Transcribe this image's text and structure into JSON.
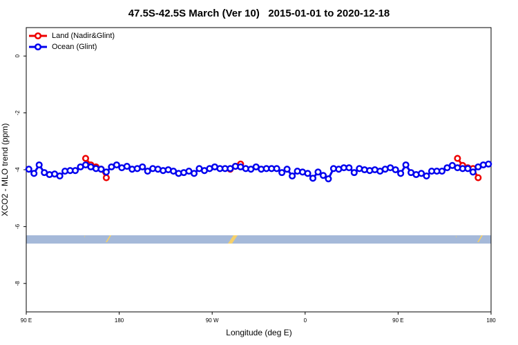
{
  "chart_data": {
    "type": "line",
    "title": "47.5S-42.5S March (Ver 10)   2015-01-01 to 2020-12-18",
    "x_label": "Longitude (deg E)",
    "y_label": "XCO2 - MLO trend (ppm)",
    "x": [
      92.5,
      97.5,
      102.5,
      107.5,
      112.5,
      117.5,
      122.5,
      127.5,
      132.5,
      137.5,
      142.5,
      147.5,
      152.5,
      157.5,
      162.5,
      167.5,
      172.5,
      177.5,
      182.5,
      187.5,
      192.5,
      197.5,
      202.5,
      207.5,
      212.5,
      217.5,
      222.5,
      227.5,
      232.5,
      237.5,
      242.5,
      247.5,
      252.5,
      257.5,
      262.5,
      267.5,
      272.5,
      277.5,
      282.5,
      287.5,
      292.5,
      297.5,
      302.5,
      307.5,
      312.5,
      317.5,
      322.5,
      327.5,
      332.5,
      337.5,
      342.5,
      347.5,
      352.5,
      357.5,
      362.5,
      367.5,
      372.5,
      377.5,
      382.5,
      387.5,
      392.5,
      397.5,
      402.5,
      407.5,
      412.5,
      417.5,
      422.5,
      427.5,
      432.5,
      437.5,
      442.5,
      447.5,
      452.5,
      457.5,
      462.5,
      467.5,
      472.5,
      477.5,
      482.5,
      487.5,
      492.5,
      497.5,
      502.5,
      507.5,
      512.5,
      517.5,
      522.5,
      527.5,
      532.5,
      537.5
    ],
    "series": [
      {
        "name": "Land (Nadir&Glint)",
        "color": "#ee0000",
        "values": [
          null,
          null,
          null,
          null,
          null,
          null,
          null,
          null,
          null,
          null,
          null,
          -3.6,
          -3.83,
          -3.9,
          -3.98,
          -4.28,
          null,
          null,
          null,
          null,
          null,
          null,
          null,
          null,
          null,
          null,
          null,
          null,
          null,
          null,
          null,
          null,
          null,
          null,
          null,
          null,
          null,
          null,
          null,
          -3.98,
          -3.88,
          -3.8,
          null,
          null,
          null,
          null,
          null,
          null,
          null,
          null,
          null,
          null,
          null,
          null,
          null,
          null,
          null,
          null,
          null,
          null,
          null,
          null,
          null,
          null,
          null,
          null,
          null,
          null,
          null,
          null,
          null,
          null,
          null,
          null,
          null,
          null,
          null,
          null,
          null,
          null,
          null,
          null,
          null,
          -3.6,
          -3.85,
          -3.93,
          -3.96,
          -4.28,
          null,
          null
        ]
      },
      {
        "name": "Ocean (Glint)",
        "color": "#0000ee",
        "values": [
          -3.98,
          -4.13,
          -3.83,
          -4.1,
          -4.17,
          -4.15,
          -4.22,
          -4.05,
          -4.03,
          -4.03,
          -3.9,
          -3.83,
          -3.9,
          -3.96,
          -3.98,
          -4.08,
          -3.9,
          -3.83,
          -3.93,
          -3.88,
          -3.98,
          -3.96,
          -3.9,
          -4.05,
          -3.96,
          -3.98,
          -4.03,
          -4.0,
          -4.05,
          -4.13,
          -4.1,
          -4.05,
          -4.13,
          -3.96,
          -4.03,
          -3.96,
          -3.9,
          -3.96,
          -3.96,
          -3.96,
          -3.88,
          -3.9,
          -3.96,
          -3.98,
          -3.9,
          -3.98,
          -3.96,
          -3.96,
          -3.96,
          -4.1,
          -3.98,
          -4.22,
          -4.05,
          -4.08,
          -4.13,
          -4.3,
          -4.08,
          -4.2,
          -4.32,
          -3.96,
          -3.98,
          -3.93,
          -3.93,
          -4.1,
          -3.96,
          -4.0,
          -4.03,
          -4.0,
          -4.05,
          -3.98,
          -3.93,
          -4.0,
          -4.13,
          -3.83,
          -4.1,
          -4.17,
          -4.13,
          -4.22,
          -4.05,
          -4.05,
          -4.05,
          -3.93,
          -3.85,
          -3.93,
          -3.96,
          -3.96,
          -4.08,
          -3.9,
          -3.83,
          -3.8
        ]
      }
    ],
    "xlim": [
      90,
      540
    ],
    "xticks": [
      {
        "value": 90,
        "label": "90 E"
      },
      180,
      {
        "value": 270,
        "label": "90 W"
      },
      {
        "value": 360,
        "label": "0"
      },
      {
        "value": 450,
        "label": "90 E"
      },
      {
        "value": 540,
        "label": "180"
      }
    ],
    "ylim": [
      -9,
      1
    ],
    "yticks": [
      0,
      -2,
      -4,
      -6,
      -8
    ],
    "legend": "topleft"
  }
}
